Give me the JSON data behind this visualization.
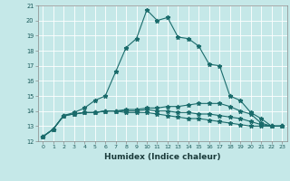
{
  "title": "",
  "xlabel": "Humidex (Indice chaleur)",
  "background_color": "#c5e8e8",
  "grid_color": "#ffffff",
  "line_color": "#1a6b6b",
  "xlim": [
    -0.5,
    23.5
  ],
  "ylim": [
    12,
    21
  ],
  "xticks": [
    0,
    1,
    2,
    3,
    4,
    5,
    6,
    7,
    8,
    9,
    10,
    11,
    12,
    13,
    14,
    15,
    16,
    17,
    18,
    19,
    20,
    21,
    22,
    23
  ],
  "yticks": [
    12,
    13,
    14,
    15,
    16,
    17,
    18,
    19,
    20,
    21
  ],
  "series": [
    [
      12.3,
      12.8,
      13.7,
      13.9,
      14.2,
      14.7,
      15.0,
      16.6,
      18.2,
      18.8,
      20.7,
      20.0,
      20.2,
      18.9,
      18.8,
      18.3,
      17.1,
      17.0,
      15.0,
      14.7,
      13.9,
      13.5,
      13.0,
      13.0
    ],
    [
      12.3,
      12.8,
      13.7,
      13.8,
      13.9,
      13.9,
      14.0,
      14.0,
      14.1,
      14.1,
      14.2,
      14.2,
      14.3,
      14.3,
      14.4,
      14.5,
      14.5,
      14.5,
      14.3,
      14.0,
      13.8,
      13.2,
      13.0,
      13.0
    ],
    [
      12.3,
      12.8,
      13.7,
      13.8,
      13.9,
      13.9,
      14.0,
      14.0,
      14.0,
      14.0,
      14.1,
      14.0,
      14.0,
      13.9,
      13.9,
      13.8,
      13.8,
      13.7,
      13.6,
      13.5,
      13.3,
      13.1,
      13.0,
      13.0
    ],
    [
      12.3,
      12.8,
      13.7,
      13.8,
      13.9,
      13.9,
      14.0,
      14.0,
      13.9,
      13.9,
      13.9,
      13.8,
      13.7,
      13.6,
      13.5,
      13.5,
      13.4,
      13.3,
      13.2,
      13.1,
      13.0,
      13.0,
      13.0,
      13.0
    ]
  ]
}
